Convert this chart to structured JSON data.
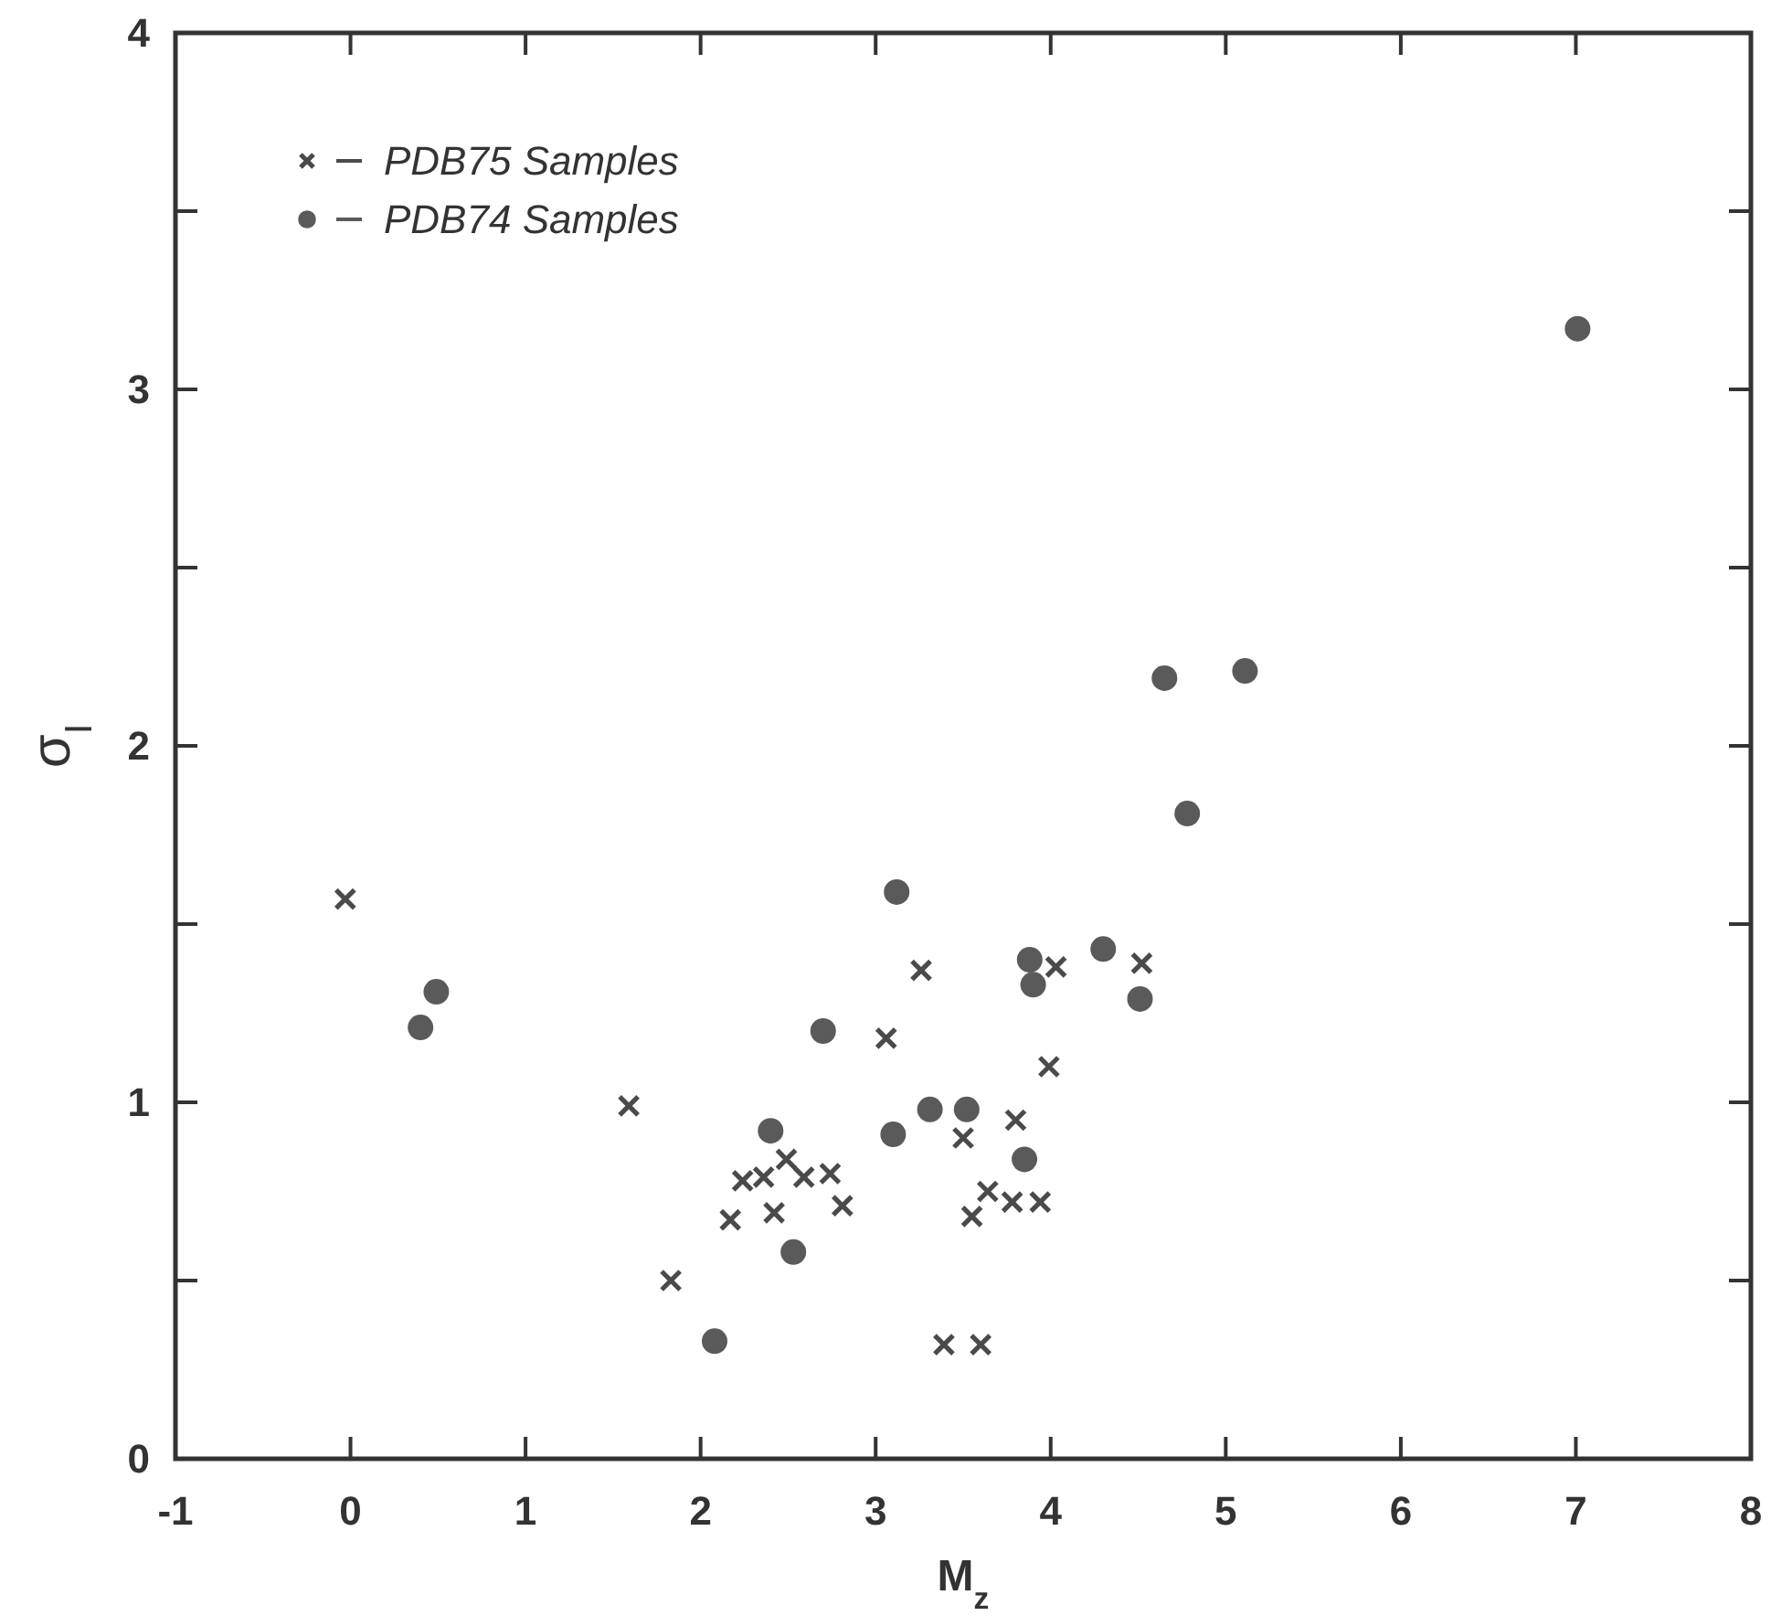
{
  "chart_data": {
    "type": "scatter",
    "xlabel": "M$_{z}$",
    "ylabel": "σ$_{I}$",
    "xlim": [
      -1,
      8
    ],
    "ylim": [
      0,
      4
    ],
    "xticks": [
      -1,
      0,
      1,
      2,
      3,
      4,
      5,
      6,
      7,
      8
    ],
    "yticks": [
      0,
      {
        "value": 0.5,
        "label": null
      },
      1,
      {
        "value": 1.5,
        "label": null
      },
      2,
      {
        "value": 2.5,
        "label": null
      },
      3,
      {
        "value": 3.5,
        "label": null
      },
      4
    ],
    "grid": false,
    "legend": "top left",
    "series": [
      {
        "name": "PDB75 Samples",
        "color": "#4a4a4a",
        "marker": "cross",
        "x": [
          -0.03,
          1.59,
          1.83,
          2.17,
          2.24,
          2.36,
          2.42,
          2.49,
          2.59,
          2.74,
          2.81,
          3.06,
          3.26,
          3.39,
          3.5,
          3.55,
          3.6,
          3.64,
          3.78,
          3.8,
          3.94,
          3.99,
          4.03,
          4.52
        ],
        "values": [
          1.57,
          0.99,
          0.5,
          0.67,
          0.78,
          0.79,
          0.69,
          0.84,
          0.79,
          0.8,
          0.71,
          1.18,
          1.37,
          0.32,
          0.9,
          0.68,
          0.32,
          0.75,
          0.72,
          0.95,
          0.72,
          1.1,
          1.38,
          1.39
        ]
      },
      {
        "name": "PDB74 Samples",
        "color": "#5a5a5a",
        "marker": "circle",
        "x": [
          0.4,
          0.49,
          2.08,
          2.4,
          2.53,
          2.7,
          3.1,
          3.12,
          3.31,
          3.52,
          3.85,
          3.88,
          3.9,
          4.3,
          4.51,
          4.65,
          4.78,
          5.11,
          7.01
        ],
        "values": [
          1.21,
          1.31,
          0.33,
          0.92,
          0.58,
          1.2,
          0.91,
          1.59,
          0.98,
          0.98,
          0.84,
          1.4,
          1.33,
          1.43,
          1.29,
          2.19,
          1.81,
          2.21,
          3.17
        ]
      }
    ]
  }
}
